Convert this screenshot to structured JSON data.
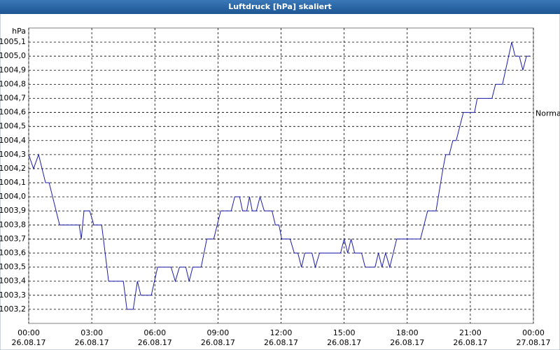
{
  "chart_data": {
    "type": "line",
    "title": "Luftdruck [hPa] skaliert",
    "y_unit": "hPa",
    "annotation": {
      "text": "Normal",
      "value": 1004.6
    },
    "grid": true,
    "xlim": [
      0,
      24
    ],
    "ylim": [
      1003.1,
      1005.2
    ],
    "xticks": [
      {
        "value": 0,
        "label": "00:00",
        "date": "26.08.17"
      },
      {
        "value": 3,
        "label": "03:00",
        "date": "26.08.17"
      },
      {
        "value": 6,
        "label": "06:00",
        "date": "26.08.17"
      },
      {
        "value": 9,
        "label": "09:00",
        "date": "26.08.17"
      },
      {
        "value": 12,
        "label": "12:00",
        "date": "26.08.17"
      },
      {
        "value": 15,
        "label": "15:00",
        "date": "26.08.17"
      },
      {
        "value": 18,
        "label": "18:00",
        "date": "26.08.17"
      },
      {
        "value": 21,
        "label": "21:00",
        "date": "26.08.17"
      },
      {
        "value": 24,
        "label": "00:00",
        "date": "27.08.17"
      }
    ],
    "yticks": [
      {
        "value": 1003.2,
        "label": "1003,2"
      },
      {
        "value": 1003.3,
        "label": "1003,3"
      },
      {
        "value": 1003.4,
        "label": "1003,4"
      },
      {
        "value": 1003.5,
        "label": "1003,5"
      },
      {
        "value": 1003.6,
        "label": "1003,6"
      },
      {
        "value": 1003.7,
        "label": "1003,7"
      },
      {
        "value": 1003.8,
        "label": "1003,8"
      },
      {
        "value": 1003.9,
        "label": "1003,9"
      },
      {
        "value": 1004.0,
        "label": "1004,0"
      },
      {
        "value": 1004.1,
        "label": "1004,1"
      },
      {
        "value": 1004.2,
        "label": "1004,2"
      },
      {
        "value": 1004.3,
        "label": "1004,3"
      },
      {
        "value": 1004.4,
        "label": "1004,4"
      },
      {
        "value": 1004.5,
        "label": "1004,5"
      },
      {
        "value": 1004.6,
        "label": "1004,6"
      },
      {
        "value": 1004.7,
        "label": "1004,7"
      },
      {
        "value": 1004.8,
        "label": "1004,8"
      },
      {
        "value": 1004.9,
        "label": "1004,9"
      },
      {
        "value": 1005.0,
        "label": "1005,0"
      },
      {
        "value": 1005.1,
        "label": "1005,1"
      }
    ],
    "x": [
      0,
      0.23,
      0.47,
      0.8,
      0.97,
      1.47,
      2.4,
      2.5,
      2.63,
      2.9,
      3.1,
      3.47,
      3.8,
      4.5,
      4.67,
      4.97,
      5.17,
      5.33,
      5.83,
      6.13,
      6.77,
      6.97,
      7.17,
      7.47,
      7.63,
      7.8,
      8.2,
      8.47,
      8.8,
      9.13,
      9.63,
      9.8,
      10.03,
      10.17,
      10.37,
      10.5,
      10.63,
      10.83,
      11,
      11.2,
      11.57,
      11.73,
      11.9,
      12.03,
      12.43,
      12.63,
      12.8,
      12.97,
      13.13,
      13.47,
      13.63,
      13.83,
      14.83,
      15,
      15.17,
      15.33,
      15.5,
      15.83,
      16,
      16.47,
      16.63,
      16.8,
      16.97,
      17.17,
      17.5,
      18.63,
      18.97,
      19.37,
      19.7,
      19.83,
      20,
      20.17,
      20.33,
      20.67,
      21.2,
      21.33,
      22.03,
      22.2,
      22.53,
      22.97,
      23.13,
      23.33,
      23.5,
      23.67,
      23.83
    ],
    "series": [
      {
        "color": "#1c1ca8",
        "values": [
          1004.3,
          1004.2,
          1004.3,
          1004.1,
          1004.1,
          1003.8,
          1003.8,
          1003.7,
          1003.9,
          1003.9,
          1003.8,
          1003.8,
          1003.4,
          1003.4,
          1003.2,
          1003.2,
          1003.4,
          1003.3,
          1003.3,
          1003.5,
          1003.5,
          1003.4,
          1003.5,
          1003.5,
          1003.4,
          1003.5,
          1003.5,
          1003.7,
          1003.7,
          1003.9,
          1003.9,
          1004.0,
          1004.0,
          1003.9,
          1003.9,
          1004.0,
          1003.9,
          1003.9,
          1004.0,
          1003.9,
          1003.9,
          1003.8,
          1003.8,
          1003.7,
          1003.7,
          1003.6,
          1003.6,
          1003.5,
          1003.6,
          1003.6,
          1003.5,
          1003.6,
          1003.6,
          1003.7,
          1003.6,
          1003.7,
          1003.6,
          1003.6,
          1003.5,
          1003.5,
          1003.6,
          1003.5,
          1003.6,
          1003.5,
          1003.7,
          1003.7,
          1003.9,
          1003.9,
          1004.2,
          1004.3,
          1004.3,
          1004.4,
          1004.4,
          1004.6,
          1004.6,
          1004.7,
          1004.7,
          1004.8,
          1004.8,
          1005.1,
          1005.0,
          1005.0,
          1004.9,
          1005.0,
          1005.0
        ]
      }
    ]
  }
}
